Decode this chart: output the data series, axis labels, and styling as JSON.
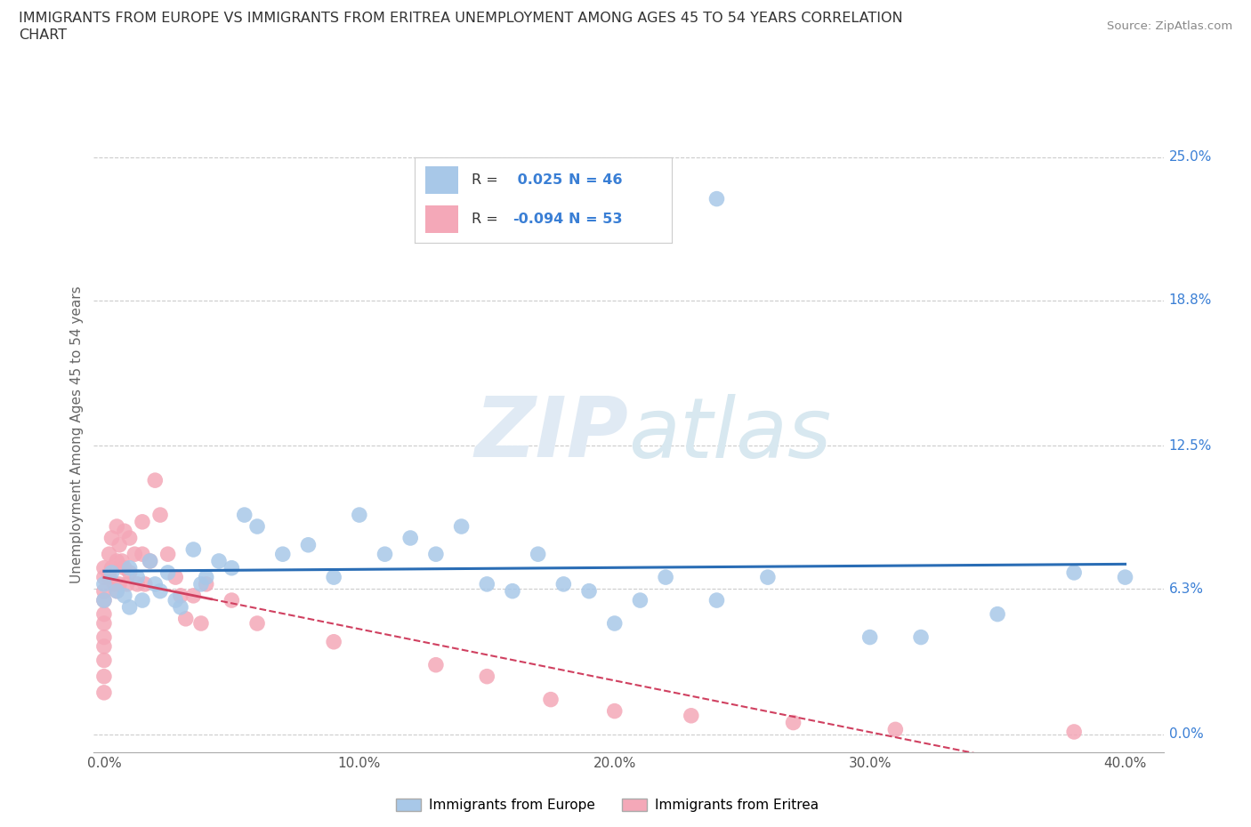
{
  "title_line1": "IMMIGRANTS FROM EUROPE VS IMMIGRANTS FROM ERITREA UNEMPLOYMENT AMONG AGES 45 TO 54 YEARS CORRELATION",
  "title_line2": "CHART",
  "source": "Source: ZipAtlas.com",
  "ylabel": "Unemployment Among Ages 45 to 54 years",
  "xlim": [
    -0.004,
    0.415
  ],
  "ylim": [
    -0.008,
    0.268
  ],
  "xtick_vals": [
    0.0,
    0.1,
    0.2,
    0.3,
    0.4
  ],
  "xtick_labels": [
    "0.0%",
    "10.0%",
    "20.0%",
    "30.0%",
    "40.0%"
  ],
  "ytick_vals": [
    0.0,
    0.063,
    0.125,
    0.188,
    0.25
  ],
  "ytick_labels": [
    "0.0%",
    "6.3%",
    "12.5%",
    "18.8%",
    "25.0%"
  ],
  "R_europe": 0.025,
  "N_europe": 46,
  "R_eritrea": -0.094,
  "N_eritrea": 53,
  "europe_scatter_color": "#a8c8e8",
  "eritrea_scatter_color": "#f4a8b8",
  "europe_line_color": "#2a6db5",
  "eritrea_line_color": "#d04060",
  "label_color": "#3a7fd5",
  "watermark_color": "#e0eaf4",
  "europe_x": [
    0.0,
    0.0,
    0.003,
    0.005,
    0.008,
    0.01,
    0.01,
    0.013,
    0.015,
    0.018,
    0.02,
    0.022,
    0.025,
    0.028,
    0.03,
    0.035,
    0.038,
    0.04,
    0.045,
    0.05,
    0.055,
    0.06,
    0.07,
    0.08,
    0.09,
    0.1,
    0.11,
    0.12,
    0.13,
    0.14,
    0.15,
    0.16,
    0.17,
    0.18,
    0.19,
    0.2,
    0.21,
    0.22,
    0.24,
    0.26,
    0.3,
    0.32,
    0.35,
    0.38,
    0.4,
    0.24
  ],
  "europe_y": [
    0.065,
    0.058,
    0.07,
    0.062,
    0.06,
    0.072,
    0.055,
    0.068,
    0.058,
    0.075,
    0.065,
    0.062,
    0.07,
    0.058,
    0.055,
    0.08,
    0.065,
    0.068,
    0.075,
    0.072,
    0.095,
    0.09,
    0.078,
    0.082,
    0.068,
    0.095,
    0.078,
    0.085,
    0.078,
    0.09,
    0.065,
    0.062,
    0.078,
    0.065,
    0.062,
    0.048,
    0.058,
    0.068,
    0.058,
    0.068,
    0.042,
    0.042,
    0.052,
    0.07,
    0.068,
    0.232
  ],
  "eritrea_x": [
    0.0,
    0.0,
    0.0,
    0.0,
    0.0,
    0.0,
    0.0,
    0.0,
    0.0,
    0.0,
    0.0,
    0.002,
    0.002,
    0.003,
    0.003,
    0.004,
    0.005,
    0.005,
    0.005,
    0.006,
    0.006,
    0.007,
    0.008,
    0.008,
    0.009,
    0.01,
    0.01,
    0.012,
    0.013,
    0.015,
    0.015,
    0.016,
    0.018,
    0.02,
    0.022,
    0.025,
    0.028,
    0.03,
    0.032,
    0.035,
    0.038,
    0.04,
    0.05,
    0.06,
    0.09,
    0.13,
    0.15,
    0.175,
    0.2,
    0.23,
    0.27,
    0.31,
    0.38
  ],
  "eritrea_y": [
    0.072,
    0.068,
    0.062,
    0.058,
    0.052,
    0.048,
    0.042,
    0.038,
    0.032,
    0.025,
    0.018,
    0.078,
    0.068,
    0.085,
    0.072,
    0.065,
    0.09,
    0.075,
    0.062,
    0.082,
    0.065,
    0.075,
    0.088,
    0.072,
    0.065,
    0.085,
    0.07,
    0.078,
    0.065,
    0.092,
    0.078,
    0.065,
    0.075,
    0.11,
    0.095,
    0.078,
    0.068,
    0.06,
    0.05,
    0.06,
    0.048,
    0.065,
    0.058,
    0.048,
    0.04,
    0.03,
    0.025,
    0.015,
    0.01,
    0.008,
    0.005,
    0.002,
    0.001
  ]
}
